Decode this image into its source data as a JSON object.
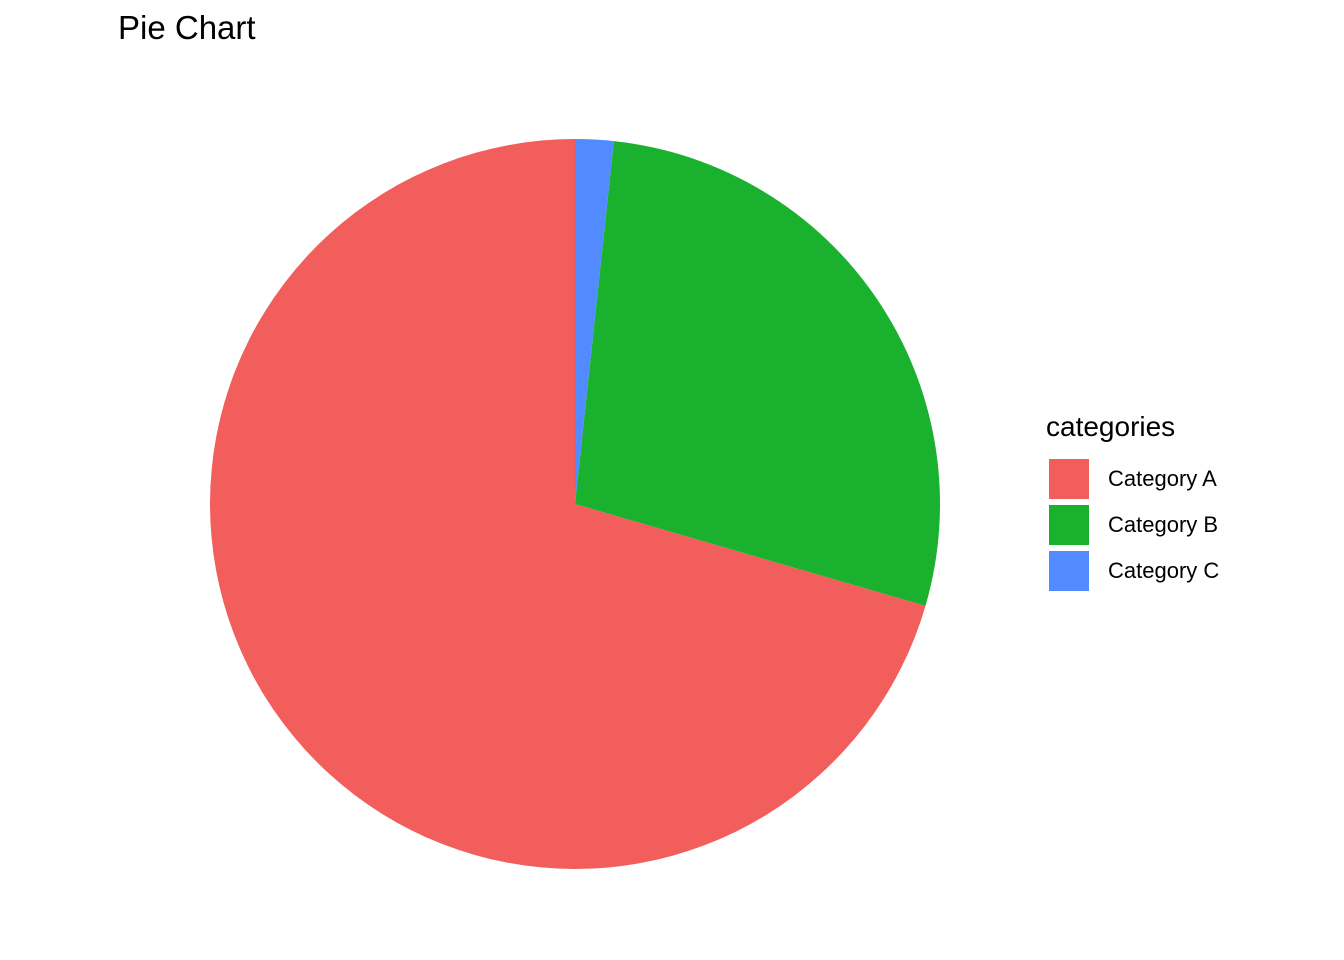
{
  "chart_data": {
    "type": "pie",
    "title": "Pie Chart",
    "legend_title": "categories",
    "legend_position": "right",
    "slices": [
      {
        "label": "Category A",
        "value": 70.5,
        "color": "#F25E5C"
      },
      {
        "label": "Category B",
        "value": 27.8,
        "color": "#1AB12F"
      },
      {
        "label": "Category C",
        "value": 1.7,
        "color": "#528BFF"
      }
    ]
  }
}
